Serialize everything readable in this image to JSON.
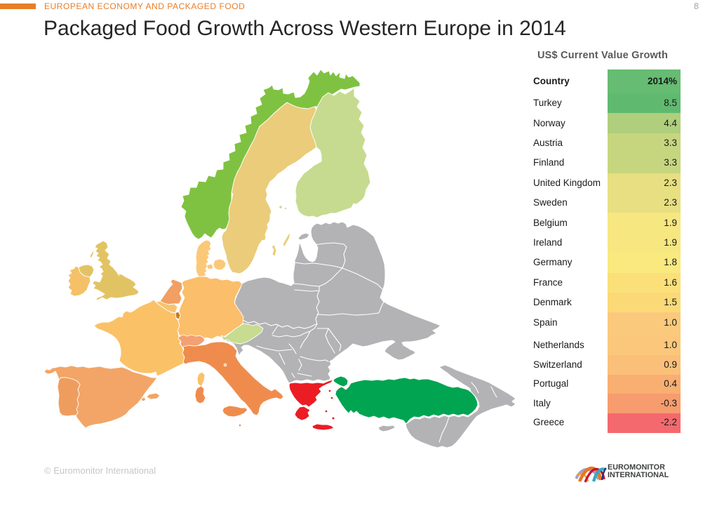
{
  "slide": {
    "kicker": "EUROPEAN ECONOMY AND PACKAGED FOOD",
    "kicker_color": "#E87D27",
    "page_number": "8",
    "page_number_color": "#A6A6A6",
    "title": "Packaged Food Growth Across Western Europe in 2014",
    "title_color": "#262626",
    "copyright": "© Euromonitor International",
    "copyright_color": "#C6C6C6",
    "logo": {
      "line1": "EUROMONITOR",
      "line2": "INTERNATIONAL"
    }
  },
  "table": {
    "title": "US$ Current Value Growth",
    "title_color": "#595959",
    "header": {
      "country": "Country",
      "value": "2014%",
      "color": "#66BC72"
    },
    "rows": [
      {
        "country": "Turkey",
        "value": "8.5",
        "color": "#5FBA6F",
        "group": 1
      },
      {
        "country": "Norway",
        "value": "4.4",
        "color": "#AFCF7C",
        "group": 1
      },
      {
        "country": "Austria",
        "value": "3.3",
        "color": "#C6D67F",
        "group": 1
      },
      {
        "country": "Finland",
        "value": "3.3",
        "color": "#C6D67F",
        "group": 1
      },
      {
        "country": "United Kingdom",
        "value": "2.3",
        "color": "#E7DF81",
        "group": 1
      },
      {
        "country": "Sweden",
        "value": "2.3",
        "color": "#E7DF81",
        "group": 1
      },
      {
        "country": "Belgium",
        "value": "1.9",
        "color": "#F6E781",
        "group": 1
      },
      {
        "country": "Ireland",
        "value": "1.9",
        "color": "#F6E781",
        "group": 1
      },
      {
        "country": "Germany",
        "value": "1.8",
        "color": "#F9E97F",
        "group": 1
      },
      {
        "country": "France",
        "value": "1.6",
        "color": "#FBE07A",
        "group": 1
      },
      {
        "country": "Denmark",
        "value": "1.5",
        "color": "#FBD977",
        "group": 1
      },
      {
        "country": "Spain",
        "value": "1.0",
        "color": "#FBC97C",
        "group": 1
      },
      {
        "country": "Netherlands",
        "value": "1.0",
        "color": "#FBC77B",
        "group": 2
      },
      {
        "country": "Switzerland",
        "value": "0.9",
        "color": "#FAC07A",
        "group": 2
      },
      {
        "country": "Portugal",
        "value": "0.4",
        "color": "#F9AE72",
        "group": 2
      },
      {
        "country": "Italy",
        "value": "-0.3",
        "color": "#F79C6E",
        "group": 2
      },
      {
        "country": "Greece",
        "value": "-2.2",
        "color": "#F4696E",
        "group": 2
      }
    ]
  },
  "map": {
    "sea": "#FFFFFF",
    "neutral": "#B3B3B5",
    "border": "#FFFFFF",
    "countries": {
      "norway": "#7FC241",
      "sweden": "#EACC7B",
      "finland": "#C6DB8F",
      "denmark": "#FBC878",
      "uk": "#E2C364",
      "ireland": "#F4C169",
      "germany": "#FBBE6B",
      "france": "#FBC167",
      "netherlands": "#F19F63",
      "belgium": "#F8C26D",
      "luxembourg": "#C87B1E",
      "switzerland": "#F3A172",
      "austria": "#C7DC90",
      "italy": "#EF8C4D",
      "spain": "#F2A566",
      "portugal": "#EF9D5E",
      "greece": "#EC1C24",
      "turkey": "#00A451"
    }
  },
  "chart_data": {
    "type": "table",
    "title": "US$ Current Value Growth",
    "subtitle": "Packaged Food Growth Across Western Europe in 2014",
    "columns": [
      "Country",
      "2014%"
    ],
    "rows": [
      [
        "Turkey",
        8.5
      ],
      [
        "Norway",
        4.4
      ],
      [
        "Austria",
        3.3
      ],
      [
        "Finland",
        3.3
      ],
      [
        "United Kingdom",
        2.3
      ],
      [
        "Sweden",
        2.3
      ],
      [
        "Belgium",
        1.9
      ],
      [
        "Ireland",
        1.9
      ],
      [
        "Germany",
        1.8
      ],
      [
        "France",
        1.6
      ],
      [
        "Denmark",
        1.5
      ],
      [
        "Spain",
        1.0
      ],
      [
        "Netherlands",
        1.0
      ],
      [
        "Switzerland",
        0.9
      ],
      [
        "Portugal",
        0.4
      ],
      [
        "Italy",
        -0.3
      ],
      [
        "Greece",
        -2.2
      ]
    ],
    "notes": "Choropleth map of Western Europe; countries not listed are shown in gray"
  }
}
